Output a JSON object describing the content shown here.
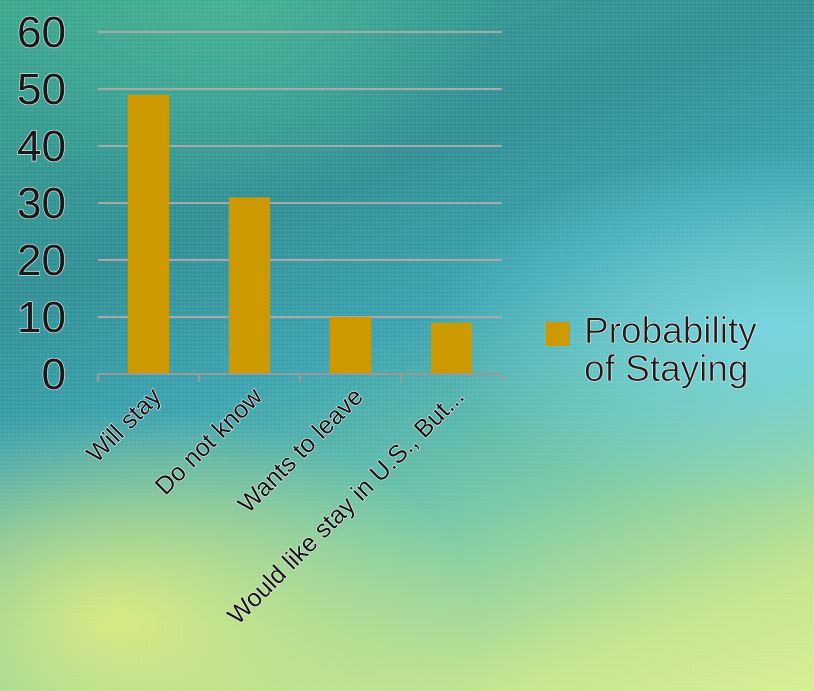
{
  "chart_data": {
    "type": "bar",
    "categories": [
      "Will stay",
      "Do not know",
      "Wants to leave",
      "Would like stay in U.S., But..."
    ],
    "series": [
      {
        "name": "Probability of Staying",
        "values": [
          49,
          31,
          10,
          9
        ],
        "color": "#cc9900"
      }
    ],
    "yticks": [
      "0",
      "10",
      "20",
      "30",
      "40",
      "50",
      "60"
    ],
    "ylim": [
      0,
      60
    ],
    "grid": true,
    "legend_position": "right"
  },
  "legend": {
    "line1": "Probability",
    "line2": "of Staying"
  }
}
